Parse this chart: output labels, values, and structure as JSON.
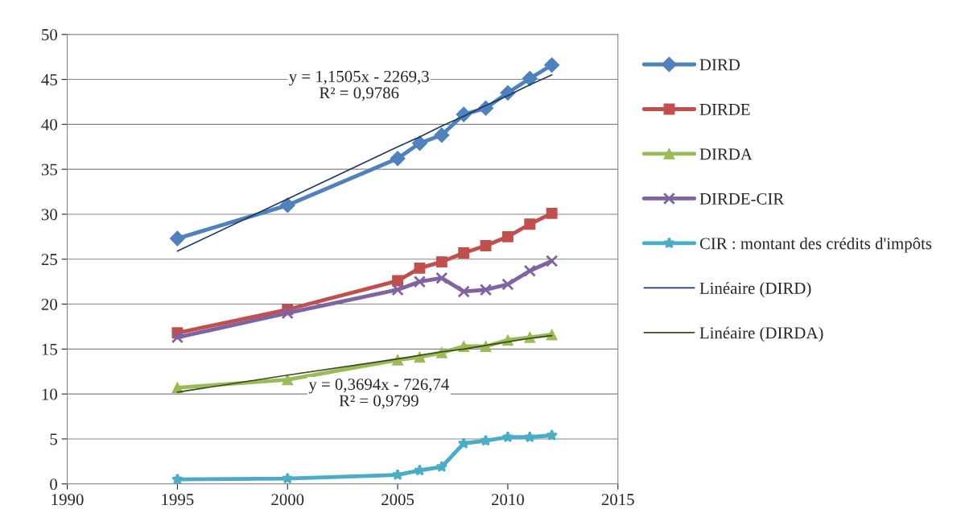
{
  "chart_data": {
    "type": "line",
    "x": [
      1995,
      2000,
      2005,
      2006,
      2007,
      2008,
      2009,
      2010,
      2011,
      2012
    ],
    "series": [
      {
        "name": "DIRD",
        "color": "#4f81bd",
        "marker": "diamond",
        "values": [
          27.3,
          31.0,
          36.2,
          37.9,
          38.8,
          41.1,
          41.8,
          43.5,
          45.1,
          46.6
        ]
      },
      {
        "name": "DIRDE",
        "color": "#c0504d",
        "marker": "square",
        "values": [
          16.8,
          19.4,
          22.6,
          24.0,
          24.7,
          25.7,
          26.5,
          27.5,
          28.9,
          30.1
        ]
      },
      {
        "name": "DIRDA",
        "color": "#9bbb59",
        "marker": "triangle",
        "values": [
          10.7,
          11.6,
          13.8,
          14.1,
          14.6,
          15.3,
          15.3,
          16.0,
          16.3,
          16.6
        ]
      },
      {
        "name": "DIRDE-CIR",
        "color": "#8064a2",
        "marker": "cross",
        "values": [
          16.3,
          19.0,
          21.6,
          22.5,
          22.9,
          21.4,
          21.6,
          22.2,
          23.7,
          24.8
        ]
      },
      {
        "name": "CIR : montant des crédits d'impôts",
        "color": "#4bacc6",
        "marker": "star",
        "values": [
          0.5,
          0.6,
          1.0,
          1.5,
          1.9,
          4.5,
          4.8,
          5.2,
          5.2,
          5.4
        ]
      },
      {
        "name": "Linéaire (DIRD)",
        "color": "#1f3864",
        "marker": "none",
        "values": [
          25.9,
          31.7,
          37.5,
          38.6,
          39.8,
          40.9,
          42.1,
          43.2,
          44.4,
          45.5
        ]
      },
      {
        "name": "Linéaire (DIRDA)",
        "color": "#3b4a1e",
        "marker": "none",
        "values": [
          10.2,
          12.1,
          13.9,
          14.3,
          14.7,
          15.0,
          15.4,
          15.8,
          16.2,
          16.5
        ]
      }
    ],
    "xlim": [
      1990,
      2015
    ],
    "xticks": [
      1990,
      1995,
      2000,
      2005,
      2010,
      2015
    ],
    "ylim": [
      0,
      50
    ],
    "yticks": [
      0,
      5,
      10,
      15,
      20,
      25,
      30,
      35,
      40,
      45,
      50
    ],
    "grid": "y",
    "legend": "right",
    "annotations": [
      "y = 1,1505x - 2269,3\nR² = 0,9786",
      "y = 0,3694x - 726,74\nR² = 0,9799"
    ]
  }
}
